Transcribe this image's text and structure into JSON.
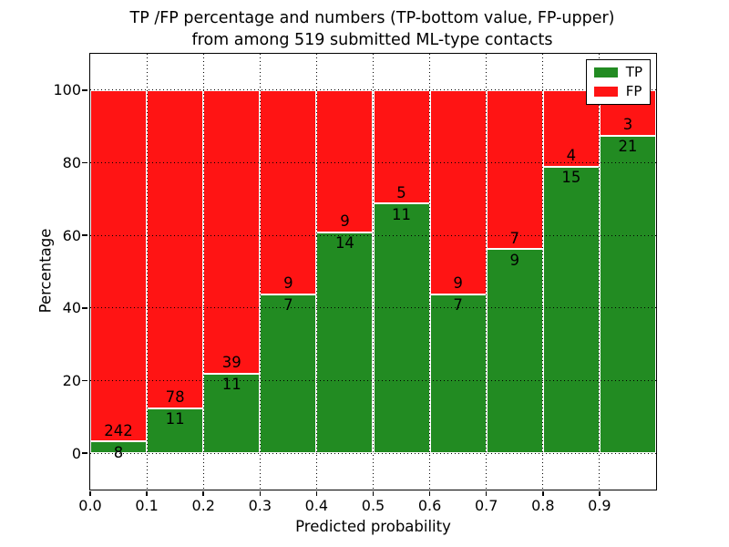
{
  "chart_data": {
    "type": "bar",
    "stacked": true,
    "normalized_to": "percent (each bin sums to 100)",
    "title_line1": "TP /FP percentage and numbers (TP-bottom value, FP-upper)",
    "title_line2": "from among 519 submitted ML-type contacts",
    "xlabel": "Predicted probability",
    "ylabel": "Percentage",
    "total_contacts": 519,
    "categories": [
      "0.0",
      "0.1",
      "0.2",
      "0.3",
      "0.4",
      "0.5",
      "0.6",
      "0.7",
      "0.8",
      "0.9"
    ],
    "series": [
      {
        "name": "TP",
        "color": "#228B22",
        "counts": [
          8,
          11,
          11,
          7,
          14,
          11,
          7,
          9,
          15,
          21
        ]
      },
      {
        "name": "FP",
        "color": "#FF1414",
        "counts": [
          242,
          78,
          39,
          9,
          9,
          5,
          9,
          7,
          4,
          3
        ]
      }
    ],
    "tp_percent_per_bin": [
      3.2,
      12.36,
      22.0,
      43.75,
      60.87,
      68.75,
      43.75,
      56.25,
      78.95,
      87.5
    ],
    "yticks": [
      0,
      20,
      40,
      60,
      80,
      100
    ],
    "xticks": [
      "0.0",
      "0.1",
      "0.2",
      "0.3",
      "0.4",
      "0.5",
      "0.6",
      "0.7",
      "0.8",
      "0.9"
    ],
    "ylim": [
      -10,
      110
    ],
    "xlim": [
      0.0,
      1.0
    ],
    "grid": "dotted black, both axes",
    "legend": {
      "position": "upper right",
      "entries": [
        {
          "label": "TP",
          "color": "#228B22"
        },
        {
          "label": "FP",
          "color": "#FF1414"
        }
      ]
    }
  }
}
